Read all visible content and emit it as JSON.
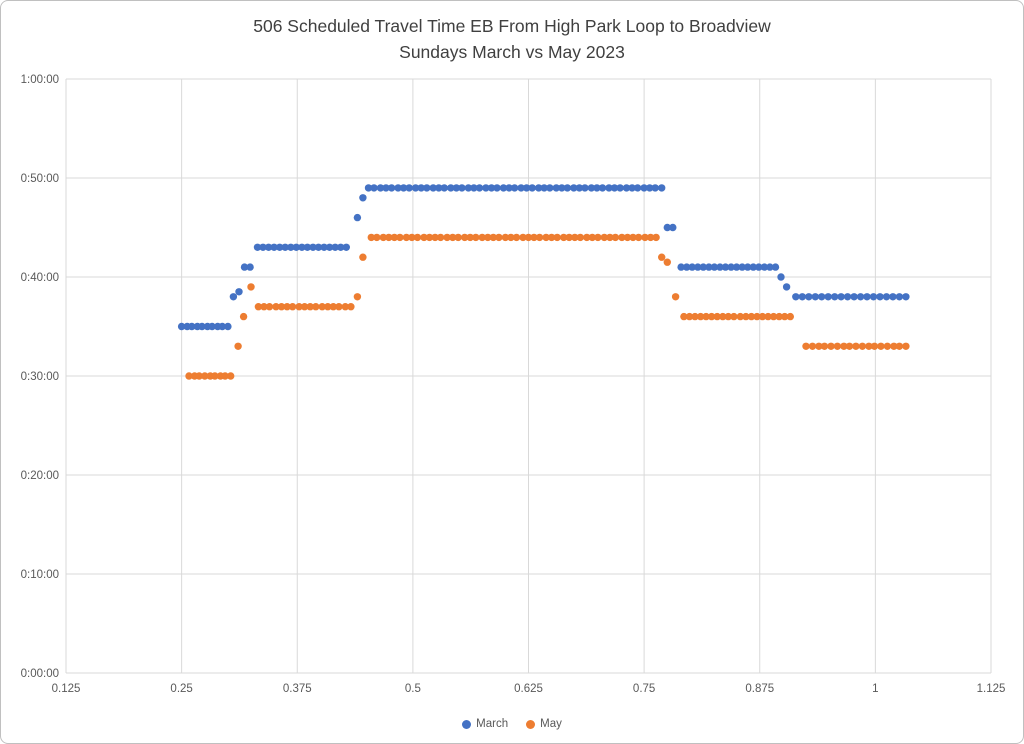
{
  "chart_data": {
    "type": "scatter",
    "title": "506 Scheduled Travel Time EB From High Park Loop to Broadview",
    "subtitle": "Sundays March vs May 2023",
    "xlabel": "",
    "ylabel": "",
    "grid": true,
    "legend_position": "bottom",
    "x_axis": {
      "min": 0.125,
      "max": 1.125,
      "ticks": [
        0.125,
        0.25,
        0.375,
        0.5,
        0.625,
        0.75,
        0.875,
        1,
        1.125
      ],
      "tick_labels": [
        "0.125",
        "0.25",
        "0.375",
        "0.5",
        "0.625",
        "0.75",
        "0.875",
        "1",
        "1.125"
      ]
    },
    "y_axis": {
      "unit": "travel time, minutes (labels shown as h:mm:ss)",
      "min": 0,
      "max": 60,
      "ticks": [
        0,
        10,
        20,
        30,
        40,
        50,
        60
      ],
      "tick_labels": [
        "0:00:00",
        "0:10:00",
        "0:20:00",
        "0:30:00",
        "0:40:00",
        "0:50:00",
        "1:00:00"
      ]
    },
    "colors": {
      "gridline": "#D9D9D9",
      "tick_text": "#595959",
      "title_text": "#404040",
      "frame_border": "#C0C0C0",
      "background": "#FFFFFF"
    },
    "series": [
      {
        "name": "March",
        "color": "#4472C4",
        "marker": "circle",
        "points": [
          [
            0.25,
            35
          ],
          [
            0.256,
            35
          ],
          [
            0.261,
            35
          ],
          [
            0.267,
            35
          ],
          [
            0.272,
            35
          ],
          [
            0.278,
            35
          ],
          [
            0.283,
            35
          ],
          [
            0.289,
            35
          ],
          [
            0.294,
            35
          ],
          [
            0.3,
            35
          ],
          [
            0.306,
            38
          ],
          [
            0.312,
            38.5
          ],
          [
            0.318,
            41
          ],
          [
            0.324,
            41
          ],
          [
            0.332,
            43
          ],
          [
            0.338,
            43
          ],
          [
            0.344,
            43
          ],
          [
            0.35,
            43
          ],
          [
            0.356,
            43
          ],
          [
            0.362,
            43
          ],
          [
            0.368,
            43
          ],
          [
            0.374,
            43
          ],
          [
            0.38,
            43
          ],
          [
            0.386,
            43
          ],
          [
            0.392,
            43
          ],
          [
            0.398,
            43
          ],
          [
            0.404,
            43
          ],
          [
            0.41,
            43
          ],
          [
            0.416,
            43
          ],
          [
            0.422,
            43
          ],
          [
            0.428,
            43
          ],
          [
            0.44,
            46
          ],
          [
            0.446,
            48
          ],
          [
            0.452,
            49
          ],
          [
            0.458,
            49
          ],
          [
            0.465,
            49
          ],
          [
            0.471,
            49
          ],
          [
            0.477,
            49
          ],
          [
            0.484,
            49
          ],
          [
            0.49,
            49
          ],
          [
            0.496,
            49
          ],
          [
            0.503,
            49
          ],
          [
            0.509,
            49
          ],
          [
            0.515,
            49
          ],
          [
            0.522,
            49
          ],
          [
            0.528,
            49
          ],
          [
            0.534,
            49
          ],
          [
            0.541,
            49
          ],
          [
            0.547,
            49
          ],
          [
            0.553,
            49
          ],
          [
            0.56,
            49
          ],
          [
            0.566,
            49
          ],
          [
            0.572,
            49
          ],
          [
            0.579,
            49
          ],
          [
            0.585,
            49
          ],
          [
            0.591,
            49
          ],
          [
            0.598,
            49
          ],
          [
            0.604,
            49
          ],
          [
            0.61,
            49
          ],
          [
            0.617,
            49
          ],
          [
            0.623,
            49
          ],
          [
            0.629,
            49
          ],
          [
            0.636,
            49
          ],
          [
            0.642,
            49
          ],
          [
            0.648,
            49
          ],
          [
            0.655,
            49
          ],
          [
            0.661,
            49
          ],
          [
            0.667,
            49
          ],
          [
            0.674,
            49
          ],
          [
            0.68,
            49
          ],
          [
            0.686,
            49
          ],
          [
            0.693,
            49
          ],
          [
            0.699,
            49
          ],
          [
            0.705,
            49
          ],
          [
            0.712,
            49
          ],
          [
            0.718,
            49
          ],
          [
            0.724,
            49
          ],
          [
            0.731,
            49
          ],
          [
            0.737,
            49
          ],
          [
            0.743,
            49
          ],
          [
            0.75,
            49
          ],
          [
            0.756,
            49
          ],
          [
            0.762,
            49
          ],
          [
            0.769,
            49
          ],
          [
            0.775,
            45
          ],
          [
            0.781,
            45
          ],
          [
            0.79,
            41
          ],
          [
            0.796,
            41
          ],
          [
            0.802,
            41
          ],
          [
            0.808,
            41
          ],
          [
            0.814,
            41
          ],
          [
            0.82,
            41
          ],
          [
            0.826,
            41
          ],
          [
            0.832,
            41
          ],
          [
            0.838,
            41
          ],
          [
            0.844,
            41
          ],
          [
            0.85,
            41
          ],
          [
            0.856,
            41
          ],
          [
            0.862,
            41
          ],
          [
            0.868,
            41
          ],
          [
            0.874,
            41
          ],
          [
            0.88,
            41
          ],
          [
            0.886,
            41
          ],
          [
            0.892,
            41
          ],
          [
            0.898,
            40
          ],
          [
            0.904,
            39
          ],
          [
            0.914,
            38
          ],
          [
            0.921,
            38
          ],
          [
            0.928,
            38
          ],
          [
            0.935,
            38
          ],
          [
            0.942,
            38
          ],
          [
            0.949,
            38
          ],
          [
            0.956,
            38
          ],
          [
            0.963,
            38
          ],
          [
            0.97,
            38
          ],
          [
            0.977,
            38
          ],
          [
            0.984,
            38
          ],
          [
            0.991,
            38
          ],
          [
            0.998,
            38
          ],
          [
            1.005,
            38
          ],
          [
            1.012,
            38
          ],
          [
            1.019,
            38
          ],
          [
            1.026,
            38
          ],
          [
            1.033,
            38
          ]
        ]
      },
      {
        "name": "May",
        "color": "#ED7D31",
        "marker": "circle",
        "points": [
          [
            0.258,
            30
          ],
          [
            0.264,
            30
          ],
          [
            0.269,
            30
          ],
          [
            0.275,
            30
          ],
          [
            0.281,
            30
          ],
          [
            0.286,
            30
          ],
          [
            0.292,
            30
          ],
          [
            0.297,
            30
          ],
          [
            0.303,
            30
          ],
          [
            0.311,
            33
          ],
          [
            0.317,
            36
          ],
          [
            0.325,
            39
          ],
          [
            0.333,
            37
          ],
          [
            0.339,
            37
          ],
          [
            0.345,
            37
          ],
          [
            0.352,
            37
          ],
          [
            0.358,
            37
          ],
          [
            0.364,
            37
          ],
          [
            0.37,
            37
          ],
          [
            0.377,
            37
          ],
          [
            0.383,
            37
          ],
          [
            0.389,
            37
          ],
          [
            0.395,
            37
          ],
          [
            0.402,
            37
          ],
          [
            0.408,
            37
          ],
          [
            0.414,
            37
          ],
          [
            0.42,
            37
          ],
          [
            0.427,
            37
          ],
          [
            0.433,
            37
          ],
          [
            0.44,
            38
          ],
          [
            0.446,
            42
          ],
          [
            0.455,
            44
          ],
          [
            0.461,
            44
          ],
          [
            0.468,
            44
          ],
          [
            0.474,
            44
          ],
          [
            0.48,
            44
          ],
          [
            0.486,
            44
          ],
          [
            0.493,
            44
          ],
          [
            0.499,
            44
          ],
          [
            0.505,
            44
          ],
          [
            0.512,
            44
          ],
          [
            0.518,
            44
          ],
          [
            0.524,
            44
          ],
          [
            0.53,
            44
          ],
          [
            0.537,
            44
          ],
          [
            0.543,
            44
          ],
          [
            0.549,
            44
          ],
          [
            0.556,
            44
          ],
          [
            0.562,
            44
          ],
          [
            0.568,
            44
          ],
          [
            0.575,
            44
          ],
          [
            0.581,
            44
          ],
          [
            0.587,
            44
          ],
          [
            0.593,
            44
          ],
          [
            0.6,
            44
          ],
          [
            0.606,
            44
          ],
          [
            0.612,
            44
          ],
          [
            0.619,
            44
          ],
          [
            0.625,
            44
          ],
          [
            0.631,
            44
          ],
          [
            0.637,
            44
          ],
          [
            0.644,
            44
          ],
          [
            0.65,
            44
          ],
          [
            0.656,
            44
          ],
          [
            0.663,
            44
          ],
          [
            0.669,
            44
          ],
          [
            0.675,
            44
          ],
          [
            0.681,
            44
          ],
          [
            0.688,
            44
          ],
          [
            0.694,
            44
          ],
          [
            0.7,
            44
          ],
          [
            0.707,
            44
          ],
          [
            0.713,
            44
          ],
          [
            0.719,
            44
          ],
          [
            0.726,
            44
          ],
          [
            0.732,
            44
          ],
          [
            0.738,
            44
          ],
          [
            0.744,
            44
          ],
          [
            0.751,
            44
          ],
          [
            0.757,
            44
          ],
          [
            0.763,
            44
          ],
          [
            0.769,
            42
          ],
          [
            0.775,
            41.5
          ],
          [
            0.784,
            38
          ],
          [
            0.793,
            36
          ],
          [
            0.799,
            36
          ],
          [
            0.805,
            36
          ],
          [
            0.811,
            36
          ],
          [
            0.817,
            36
          ],
          [
            0.823,
            36
          ],
          [
            0.829,
            36
          ],
          [
            0.835,
            36
          ],
          [
            0.841,
            36
          ],
          [
            0.847,
            36
          ],
          [
            0.854,
            36
          ],
          [
            0.86,
            36
          ],
          [
            0.866,
            36
          ],
          [
            0.872,
            36
          ],
          [
            0.878,
            36
          ],
          [
            0.884,
            36
          ],
          [
            0.89,
            36
          ],
          [
            0.896,
            36
          ],
          [
            0.902,
            36
          ],
          [
            0.908,
            36
          ],
          [
            0.925,
            33
          ],
          [
            0.932,
            33
          ],
          [
            0.939,
            33
          ],
          [
            0.945,
            33
          ],
          [
            0.952,
            33
          ],
          [
            0.959,
            33
          ],
          [
            0.966,
            33
          ],
          [
            0.972,
            33
          ],
          [
            0.979,
            33
          ],
          [
            0.986,
            33
          ],
          [
            0.993,
            33
          ],
          [
            0.999,
            33
          ],
          [
            1.006,
            33
          ],
          [
            1.013,
            33
          ],
          [
            1.02,
            33
          ],
          [
            1.026,
            33
          ],
          [
            1.033,
            33
          ]
        ]
      }
    ]
  }
}
